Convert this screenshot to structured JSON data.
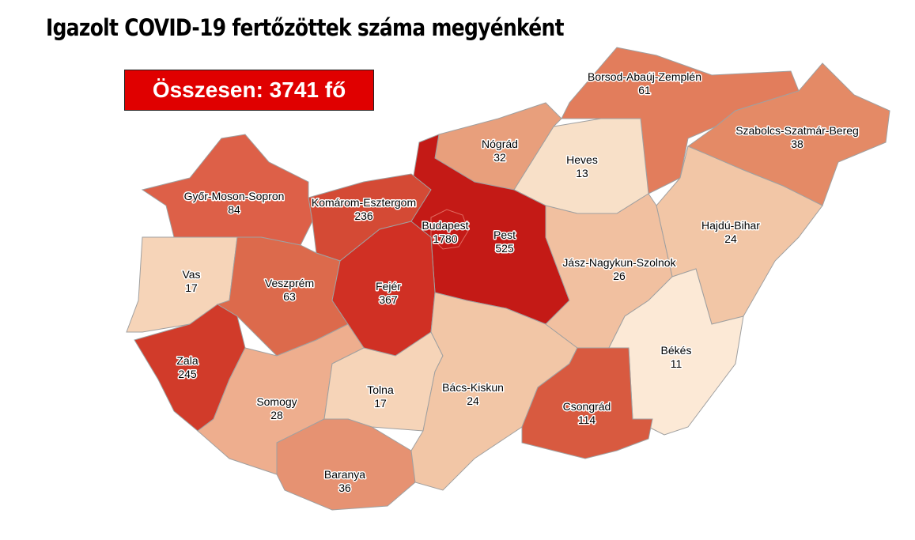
{
  "title": "Igazolt COVID-19 fertőzöttek száma megyénként",
  "total_label": "Összesen: 3741 fő",
  "counties": [
    {
      "name": "Borsod-Abaúj-Zemplén",
      "value": "61",
      "color": "#e27d5c"
    },
    {
      "name": "Szabolcs-Szatmár-Bereg",
      "value": "38",
      "color": "#e48a66"
    },
    {
      "name": "Hajdú-Bihar",
      "value": "24",
      "color": "#f2c6a6"
    },
    {
      "name": "Heves",
      "value": "13",
      "color": "#f8e0c8"
    },
    {
      "name": "Nógrád",
      "value": "32",
      "color": "#e89f7c"
    },
    {
      "name": "Pest",
      "value": "525",
      "color": "#c41a16"
    },
    {
      "name": "Budapest",
      "value": "1780",
      "color": "#c41a16"
    },
    {
      "name": "Komárom-Esztergom",
      "value": "236",
      "color": "#d44a35"
    },
    {
      "name": "Győr-Moson-Sopron",
      "value": "84",
      "color": "#dd6048"
    },
    {
      "name": "Vas",
      "value": "17",
      "color": "#f6d4b8"
    },
    {
      "name": "Veszprém",
      "value": "63",
      "color": "#dc6a4c"
    },
    {
      "name": "Fejér",
      "value": "367",
      "color": "#d03024"
    },
    {
      "name": "Zala",
      "value": "245",
      "color": "#d13b2a"
    },
    {
      "name": "Somogy",
      "value": "28",
      "color": "#eeae8e"
    },
    {
      "name": "Tolna",
      "value": "17",
      "color": "#f6d4b8"
    },
    {
      "name": "Baranya",
      "value": "36",
      "color": "#e69272"
    },
    {
      "name": "Bács-Kiskun",
      "value": "24",
      "color": "#f2c6a6"
    },
    {
      "name": "Jász-Nagykun-Szolnok",
      "value": "26",
      "color": "#f1c0a0"
    },
    {
      "name": "Békés",
      "value": "11",
      "color": "#fce9d6"
    },
    {
      "name": "Csongrád",
      "value": "114",
      "color": "#d85a40"
    }
  ]
}
